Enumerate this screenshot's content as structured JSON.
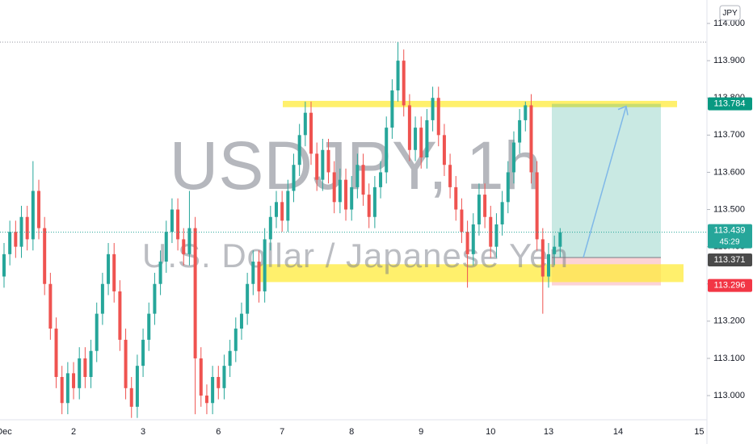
{
  "chart_data": {
    "type": "candlestick",
    "title": "USDJPY, 1h",
    "subtitle": "U.S. Dollar / Japanese Yen",
    "currency": "JPY",
    "categories": [
      "Dec",
      null,
      null,
      null,
      null,
      null,
      null,
      null,
      null,
      null,
      null,
      null,
      "2",
      null,
      null,
      null,
      null,
      null,
      null,
      null,
      null,
      null,
      null,
      null,
      "3",
      null,
      null,
      null,
      null,
      null,
      null,
      null,
      null,
      null,
      null,
      null,
      null,
      "6",
      null,
      null,
      null,
      null,
      null,
      null,
      null,
      null,
      null,
      null,
      "7",
      null,
      null,
      null,
      null,
      null,
      null,
      null,
      null,
      null,
      null,
      null,
      "8",
      null,
      null,
      null,
      null,
      null,
      null,
      null,
      null,
      null,
      null,
      null,
      "9",
      null,
      null,
      null,
      null,
      null,
      null,
      null,
      null,
      null,
      null,
      null,
      "10",
      null,
      null,
      null,
      null,
      null,
      null,
      null,
      null,
      null,
      "13",
      null,
      null,
      null,
      null,
      null,
      null,
      null,
      null,
      null,
      null,
      null,
      "14",
      null,
      null,
      null,
      null,
      null,
      null,
      null,
      null,
      null,
      null,
      null,
      null,
      null,
      "15",
      null
    ],
    "open": [
      113.32,
      113.38,
      113.44,
      113.4,
      113.48,
      113.42,
      113.55,
      113.45,
      113.3,
      113.18,
      113.05,
      112.98,
      113.06,
      113.02,
      113.1,
      113.05,
      113.12,
      113.22,
      113.3,
      113.38,
      113.28,
      113.15,
      113.02,
      112.97,
      113.08,
      113.15,
      113.22,
      113.3,
      113.36,
      113.44,
      113.5,
      113.42,
      113.38,
      113.45,
      113.1,
      113.0,
      112.98,
      113.05,
      113.02,
      113.08,
      113.12,
      113.18,
      113.22,
      113.3,
      113.36,
      113.28,
      113.42,
      113.48,
      113.52,
      113.47,
      113.55,
      113.62,
      113.7,
      113.76,
      113.65,
      113.58,
      113.66,
      113.6,
      113.52,
      113.58,
      113.5,
      113.56,
      113.62,
      113.54,
      113.48,
      113.56,
      113.6,
      113.72,
      113.82,
      113.9,
      113.78,
      113.66,
      113.72,
      113.64,
      113.74,
      113.8,
      113.7,
      113.62,
      113.56,
      113.5,
      113.44,
      113.38,
      113.46,
      113.54,
      113.48,
      113.4,
      113.46,
      113.52,
      113.6,
      113.68,
      113.74,
      113.78,
      113.6,
      113.42,
      113.32,
      113.38,
      113.4,
      null,
      null,
      null,
      null,
      null,
      null,
      null,
      null,
      null,
      null,
      null,
      null,
      null,
      null,
      null,
      null,
      null,
      null,
      null,
      null,
      null,
      null,
      null,
      null,
      null
    ],
    "high": [
      113.41,
      113.47,
      113.47,
      113.51,
      113.51,
      113.63,
      113.58,
      113.48,
      113.33,
      113.21,
      113.08,
      113.09,
      113.09,
      113.13,
      113.13,
      113.15,
      113.25,
      113.33,
      113.41,
      113.41,
      113.31,
      113.18,
      113.05,
      113.11,
      113.18,
      113.25,
      113.33,
      113.39,
      113.47,
      113.53,
      113.53,
      113.45,
      113.55,
      113.48,
      113.13,
      113.03,
      113.08,
      113.08,
      113.11,
      113.15,
      113.21,
      113.25,
      113.33,
      113.39,
      113.39,
      113.45,
      113.51,
      113.55,
      113.55,
      113.58,
      113.65,
      113.73,
      113.79,
      113.79,
      113.68,
      113.69,
      113.69,
      113.63,
      113.61,
      113.61,
      113.59,
      113.65,
      113.65,
      113.57,
      113.59,
      113.63,
      113.75,
      113.85,
      113.95,
      113.93,
      113.81,
      113.75,
      113.75,
      113.77,
      113.83,
      113.83,
      113.73,
      113.65,
      113.59,
      113.53,
      113.47,
      113.49,
      113.57,
      113.57,
      113.51,
      113.49,
      113.55,
      113.63,
      113.71,
      113.77,
      113.79,
      113.81,
      113.63,
      113.45,
      113.41,
      113.43,
      113.45,
      null,
      null,
      null,
      null,
      null,
      null,
      null,
      null,
      null,
      null,
      null,
      null,
      null,
      null,
      null,
      null,
      null,
      null,
      null,
      null,
      null,
      null,
      null,
      null,
      null
    ],
    "low": [
      113.29,
      113.35,
      113.37,
      113.37,
      113.39,
      113.39,
      113.42,
      113.27,
      113.15,
      113.02,
      112.95,
      112.95,
      112.99,
      112.99,
      113.02,
      113.02,
      113.09,
      113.19,
      113.27,
      113.25,
      113.12,
      112.99,
      112.94,
      112.94,
      113.05,
      113.12,
      113.19,
      113.27,
      113.33,
      113.41,
      113.39,
      113.35,
      113.35,
      112.95,
      112.97,
      112.95,
      112.95,
      112.99,
      112.99,
      113.05,
      113.09,
      113.15,
      113.19,
      113.27,
      113.25,
      113.25,
      113.39,
      113.45,
      113.44,
      113.44,
      113.52,
      113.59,
      113.67,
      113.62,
      113.55,
      113.55,
      113.57,
      113.49,
      113.49,
      113.47,
      113.47,
      113.53,
      113.51,
      113.45,
      113.45,
      113.53,
      113.57,
      113.69,
      113.79,
      113.75,
      113.63,
      113.63,
      113.61,
      113.61,
      113.71,
      113.67,
      113.59,
      113.53,
      113.47,
      113.41,
      113.29,
      113.35,
      113.43,
      113.45,
      113.37,
      113.37,
      113.43,
      113.49,
      113.57,
      113.65,
      113.71,
      113.57,
      113.39,
      113.22,
      113.29,
      113.35,
      113.37,
      null,
      null,
      null,
      null,
      null,
      null,
      null,
      null,
      null,
      null,
      null,
      null,
      null,
      null,
      null,
      null,
      null,
      null,
      null,
      null,
      null,
      null,
      null,
      null,
      null
    ],
    "close": [
      113.38,
      113.44,
      113.4,
      113.48,
      113.42,
      113.55,
      113.45,
      113.3,
      113.18,
      113.05,
      112.98,
      113.06,
      113.02,
      113.1,
      113.05,
      113.12,
      113.22,
      113.3,
      113.38,
      113.28,
      113.15,
      113.02,
      112.97,
      113.08,
      113.15,
      113.22,
      113.3,
      113.36,
      113.44,
      113.5,
      113.42,
      113.38,
      113.45,
      113.1,
      113.0,
      112.98,
      113.05,
      113.02,
      113.08,
      113.12,
      113.18,
      113.22,
      113.3,
      113.36,
      113.28,
      113.42,
      113.48,
      113.52,
      113.47,
      113.55,
      113.62,
      113.7,
      113.76,
      113.65,
      113.58,
      113.66,
      113.6,
      113.52,
      113.58,
      113.5,
      113.56,
      113.62,
      113.54,
      113.48,
      113.56,
      113.6,
      113.72,
      113.82,
      113.9,
      113.78,
      113.66,
      113.72,
      113.64,
      113.74,
      113.8,
      113.7,
      113.62,
      113.56,
      113.5,
      113.44,
      113.38,
      113.46,
      113.54,
      113.48,
      113.4,
      113.46,
      113.52,
      113.6,
      113.68,
      113.74,
      113.78,
      113.6,
      113.42,
      113.32,
      113.38,
      113.4,
      113.439,
      null,
      null,
      null,
      null,
      null,
      null,
      null,
      null,
      null,
      null,
      null,
      null,
      null,
      null,
      null,
      null,
      null,
      null,
      null,
      null,
      null,
      null,
      null,
      null,
      null
    ],
    "colors": {
      "up": "#26a69a",
      "down": "#ef5350"
    },
    "ylim": [
      112.935,
      114.063
    ],
    "yticks": [
      {
        "value": 113.0,
        "label": "113.000"
      },
      {
        "value": 113.1,
        "label": "113.100"
      },
      {
        "value": 113.2,
        "label": "113.200"
      },
      {
        "value": 113.3,
        "label": "113.300"
      },
      {
        "value": 113.4,
        "label": "113.400"
      },
      {
        "value": 113.5,
        "label": "113.500"
      },
      {
        "value": 113.6,
        "label": "113.600"
      },
      {
        "value": 113.7,
        "label": "113.700"
      },
      {
        "value": 113.8,
        "label": "113.800"
      },
      {
        "value": 113.9,
        "label": "113.900"
      },
      {
        "value": 114.0,
        "label": "114.000"
      }
    ],
    "grid": false,
    "last_price": 113.439,
    "countdown": "45:29",
    "position": {
      "target": 113.784,
      "entry": 113.371,
      "stop": 113.296
    },
    "resistance_zone": [
      113.775,
      113.792
    ],
    "support_zone": [
      113.305,
      113.353
    ]
  }
}
